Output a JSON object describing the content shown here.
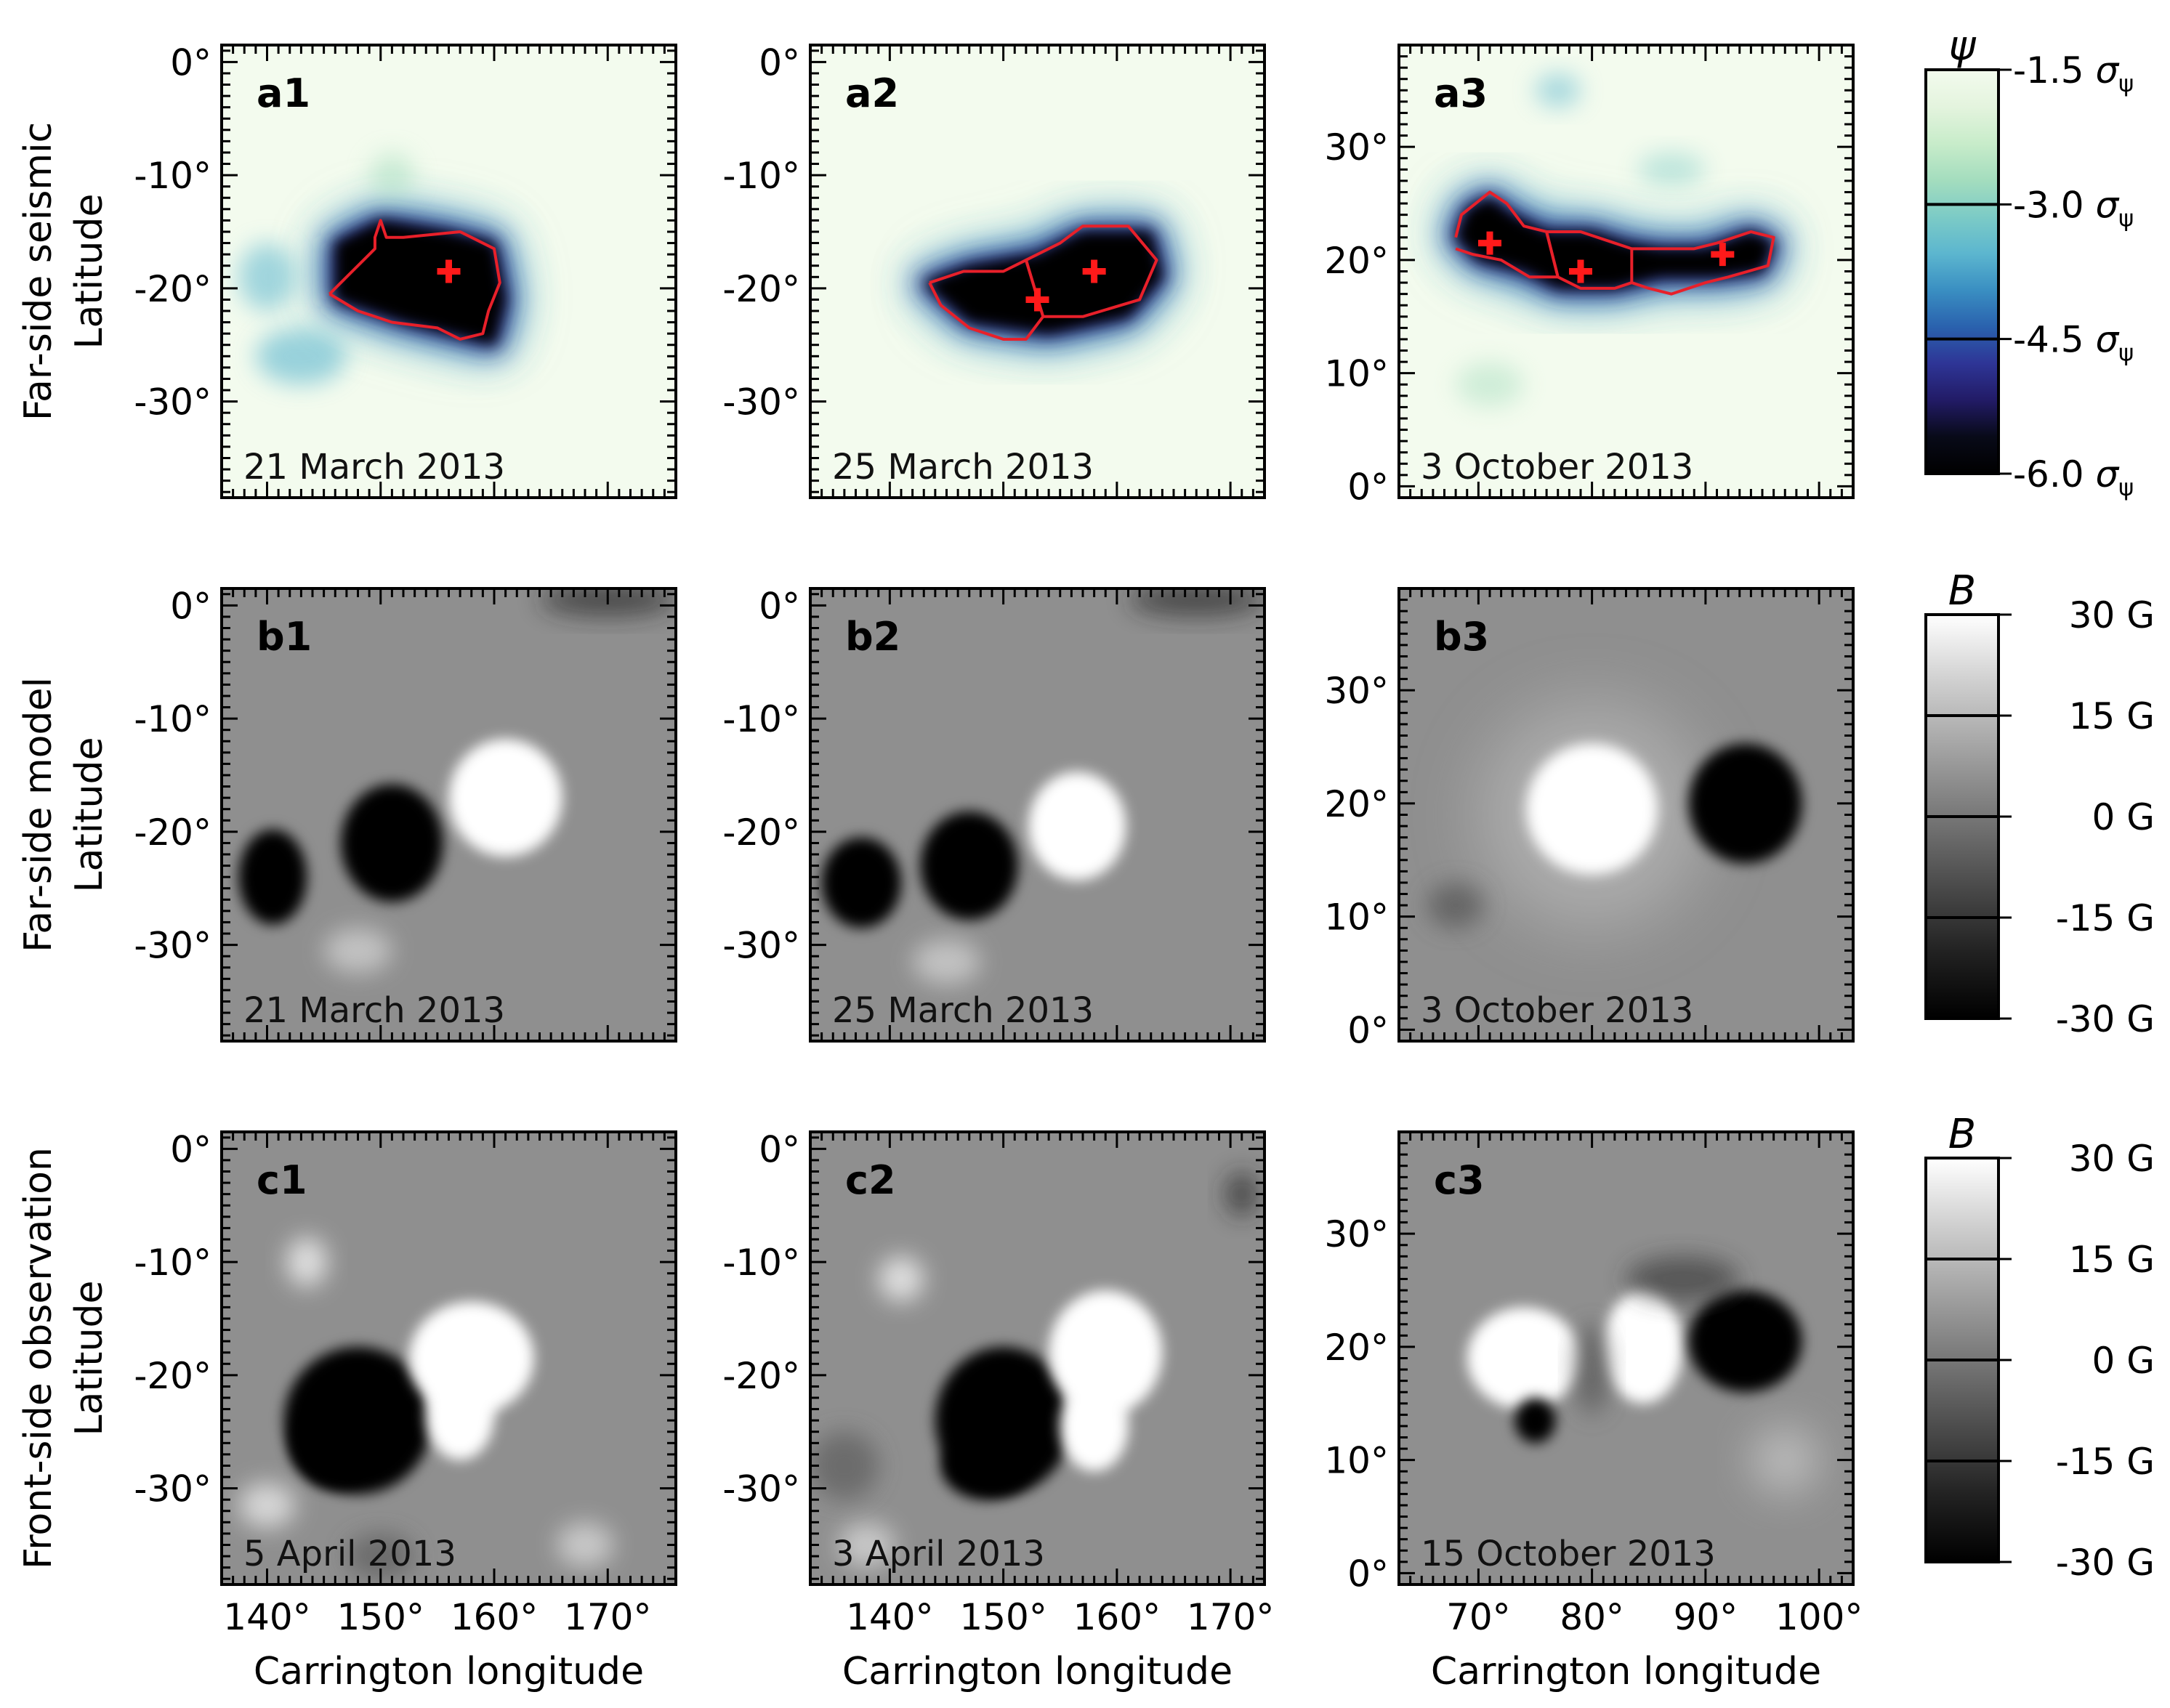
{
  "figure": {
    "row_labels": [
      [
        "Far-side seismic",
        "Latitude"
      ],
      [
        "Far-side model",
        "Latitude"
      ],
      [
        "Front-side observation",
        "Latitude"
      ]
    ],
    "x_axis_label": "Carrington longitude",
    "colorbars": [
      {
        "symbol": "ψ",
        "ticks": [
          "-1.5 σ",
          "-3.0 σ",
          "-4.5 σ",
          "-6.0 σ"
        ],
        "tick_subscript": "ψ",
        "colors": [
          "#f3fbee",
          "#e4f4de",
          "#c8ecca",
          "#a4ddbe",
          "#7ccbc6",
          "#5cb6cf",
          "#3a8fc2",
          "#2a62ae",
          "#2e3596",
          "#221b66",
          "#080a18",
          "#000000"
        ]
      },
      {
        "symbol": "B",
        "ticks": [
          "30 G",
          "15 G",
          "0 G",
          "-15 G",
          "-30 G"
        ],
        "colors": [
          "#ffffff",
          "#cfcfcf",
          "#a3a3a3",
          "#777777",
          "#4c4c4c",
          "#222222",
          "#000000"
        ]
      },
      {
        "symbol": "B",
        "ticks": [
          "30 G",
          "15 G",
          "0 G",
          "-15 G",
          "-30 G"
        ],
        "colors": [
          "#ffffff",
          "#cfcfcf",
          "#a3a3a3",
          "#777777",
          "#4c4c4c",
          "#222222",
          "#000000"
        ]
      }
    ]
  },
  "chart_data": [
    {
      "panel": "a1",
      "type": "heatmap",
      "date": "21 March 2013",
      "xlim": [
        136,
        176
      ],
      "ylim": [
        -38.5,
        1.5
      ],
      "yticks": [
        "0°",
        "-10°",
        "-20°",
        "-30°"
      ],
      "xticks": [
        "140°",
        "150°",
        "160°",
        "170°"
      ],
      "show_xticklabels": false,
      "markers": [
        [
          156,
          -18.5
        ]
      ]
    },
    {
      "panel": "a2",
      "type": "heatmap",
      "date": "25 March 2013",
      "xlim": [
        133,
        173
      ],
      "ylim": [
        -38.5,
        1.5
      ],
      "yticks": [
        "0°",
        "-10°",
        "-20°",
        "-30°"
      ],
      "xticks": [
        "140°",
        "150°",
        "160°",
        "170°"
      ],
      "show_xticklabels": false,
      "markers": [
        [
          153,
          -21
        ],
        [
          158,
          -18.5
        ]
      ]
    },
    {
      "panel": "a3",
      "type": "heatmap",
      "date": "3 October 2013",
      "xlim": [
        63,
        103
      ],
      "ylim": [
        -1,
        39
      ],
      "yticks": [
        "0°",
        "10°",
        "20°",
        "30°"
      ],
      "xticks": [
        "70°",
        "80°",
        "90°",
        "100°"
      ],
      "show_xticklabels": false,
      "markers": [
        [
          71,
          21.5
        ],
        [
          79,
          19
        ],
        [
          91.5,
          20.5
        ]
      ]
    },
    {
      "panel": "b1",
      "type": "heatmap",
      "date": "21 March 2013",
      "xlim": [
        136,
        176
      ],
      "ylim": [
        -38.5,
        1.5
      ],
      "yticks": [
        "0°",
        "-10°",
        "-20°",
        "-30°"
      ],
      "xticks": [
        "140°",
        "150°",
        "160°",
        "170°"
      ],
      "show_xticklabels": false
    },
    {
      "panel": "b2",
      "type": "heatmap",
      "date": "25 March 2013",
      "xlim": [
        133,
        173
      ],
      "ylim": [
        -38.5,
        1.5
      ],
      "yticks": [
        "0°",
        "-10°",
        "-20°",
        "-30°"
      ],
      "xticks": [
        "140°",
        "150°",
        "160°",
        "170°"
      ],
      "show_xticklabels": false
    },
    {
      "panel": "b3",
      "type": "heatmap",
      "date": "3 October 2013",
      "xlim": [
        63,
        103
      ],
      "ylim": [
        -1,
        39
      ],
      "yticks": [
        "0°",
        "10°",
        "20°",
        "30°"
      ],
      "xticks": [
        "70°",
        "80°",
        "90°",
        "100°"
      ],
      "show_xticklabels": false
    },
    {
      "panel": "c1",
      "type": "heatmap",
      "date": "5 April 2013",
      "xlim": [
        136,
        176
      ],
      "ylim": [
        -38.5,
        1.5
      ],
      "yticks": [
        "0°",
        "-10°",
        "-20°",
        "-30°"
      ],
      "xticks": [
        "140°",
        "150°",
        "160°",
        "170°"
      ],
      "show_xticklabels": true
    },
    {
      "panel": "c2",
      "type": "heatmap",
      "date": "3 April 2013",
      "xlim": [
        133,
        173
      ],
      "ylim": [
        -38.5,
        1.5
      ],
      "yticks": [
        "0°",
        "-10°",
        "-20°",
        "-30°"
      ],
      "xticks": [
        "140°",
        "150°",
        "160°",
        "170°"
      ],
      "show_xticklabels": true
    },
    {
      "panel": "c3",
      "type": "heatmap",
      "date": "15 October 2013",
      "xlim": [
        63,
        103
      ],
      "ylim": [
        -1,
        39
      ],
      "yticks": [
        "0°",
        "10°",
        "20°",
        "30°"
      ],
      "xticks": [
        "70°",
        "80°",
        "90°",
        "100°"
      ],
      "show_xticklabels": true
    }
  ]
}
